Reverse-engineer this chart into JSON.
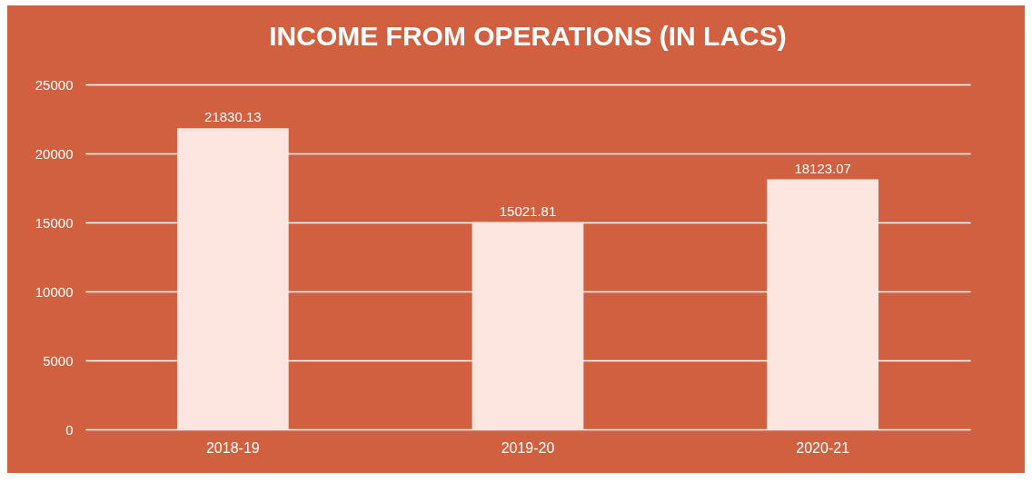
{
  "chart_data": {
    "type": "bar",
    "title": "INCOME FROM OPERATIONS (IN LACS)",
    "categories": [
      "2018-19",
      "2019-20",
      "2020-21"
    ],
    "values": [
      21830.13,
      15021.81,
      18123.07
    ],
    "color": "#fde6df",
    "ylim": [
      0,
      25000
    ],
    "yticks": [
      0,
      5000,
      10000,
      15000,
      20000,
      25000
    ],
    "grid": "y",
    "data_labels": true
  }
}
